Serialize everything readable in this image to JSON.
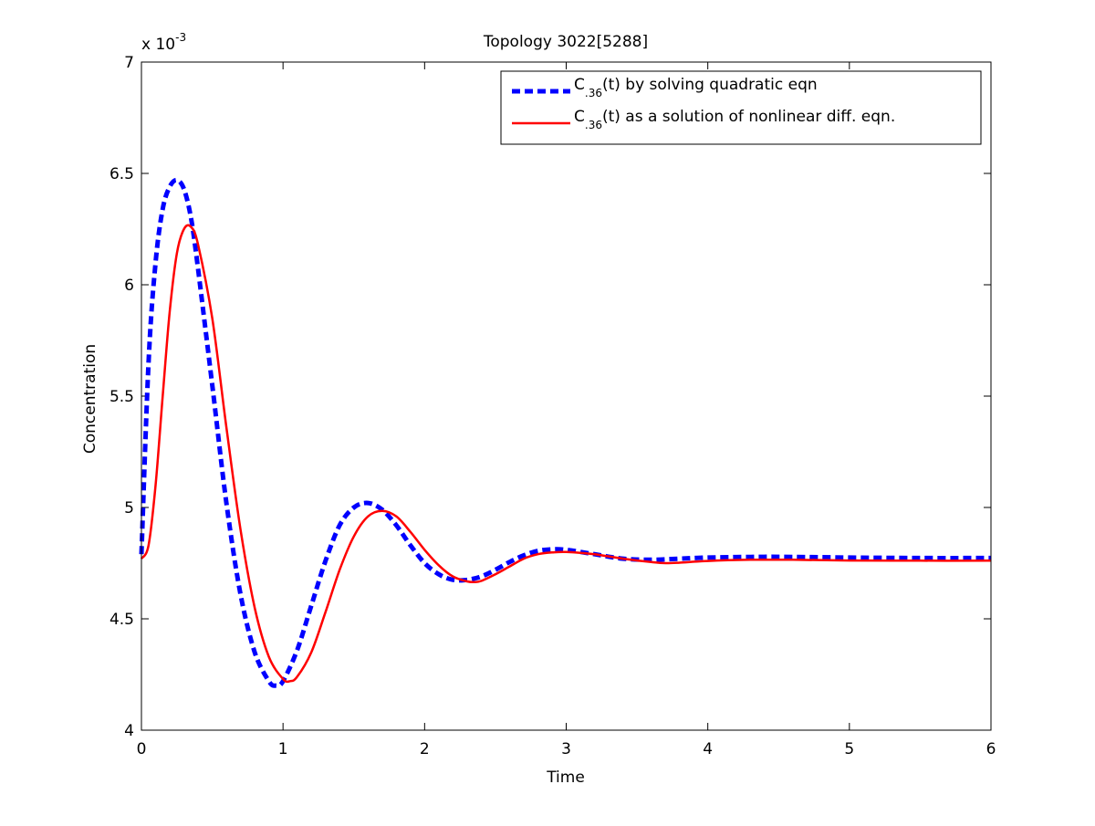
{
  "chart_data": {
    "type": "line",
    "title": "Topology 3022[5288]",
    "xlabel": "Time",
    "ylabel": "Concentration",
    "exponent_label": {
      "base": "x 10",
      "power": "-3"
    },
    "xlim": [
      0,
      6
    ],
    "ylim": [
      4,
      7
    ],
    "xticks": [
      0,
      1,
      2,
      3,
      4,
      5,
      6
    ],
    "xtick_labels": [
      "0",
      "1",
      "2",
      "3",
      "4",
      "5",
      "6"
    ],
    "yticks": [
      4,
      4.5,
      5,
      5.5,
      6,
      6.5,
      7
    ],
    "ytick_labels": [
      "4",
      "4.5",
      "5",
      "5.5",
      "6",
      "6.5",
      "7"
    ],
    "grid": false,
    "legend_position": "top-right",
    "legend_items": [
      {
        "main": "C",
        "sub": ".36",
        "rest": "(t) by solving quadratic eqn",
        "color": "#0000ff",
        "style": "dashed"
      },
      {
        "main": "C",
        "sub": ".36",
        "rest": "(t) as a solution of nonlinear diff. eqn.",
        "color": "#ff0000",
        "style": "solid"
      }
    ],
    "series": [
      {
        "color": "#0000ff",
        "style": "dashed",
        "x": [
          0,
          0.05,
          0.1,
          0.15,
          0.2,
          0.25,
          0.3,
          0.35,
          0.4,
          0.5,
          0.6,
          0.7,
          0.8,
          0.9,
          0.95,
          1.0,
          1.1,
          1.2,
          1.3,
          1.4,
          1.5,
          1.6,
          1.7,
          1.8,
          1.9,
          2.0,
          2.1,
          2.2,
          2.3,
          2.4,
          2.5,
          2.6,
          2.7,
          2.8,
          2.9,
          3.0,
          3.2,
          3.4,
          3.6,
          3.8,
          4.0,
          4.3,
          4.6,
          5.0,
          5.5,
          6.0
        ],
        "y": [
          4.79,
          5.65,
          6.1,
          6.34,
          6.44,
          6.47,
          6.43,
          6.3,
          6.07,
          5.55,
          5.02,
          4.61,
          4.35,
          4.22,
          4.2,
          4.22,
          4.36,
          4.56,
          4.76,
          4.92,
          5.0,
          5.02,
          4.99,
          4.92,
          4.83,
          4.75,
          4.7,
          4.675,
          4.675,
          4.69,
          4.72,
          4.755,
          4.785,
          4.805,
          4.812,
          4.81,
          4.79,
          4.77,
          4.765,
          4.77,
          4.775,
          4.778,
          4.778,
          4.775,
          4.773,
          4.773
        ]
      },
      {
        "color": "#ff0000",
        "style": "solid",
        "x": [
          0,
          0.05,
          0.1,
          0.15,
          0.2,
          0.25,
          0.3,
          0.35,
          0.4,
          0.5,
          0.6,
          0.7,
          0.8,
          0.9,
          1.0,
          1.05,
          1.1,
          1.2,
          1.3,
          1.4,
          1.5,
          1.6,
          1.7,
          1.8,
          1.9,
          2.0,
          2.1,
          2.2,
          2.3,
          2.35,
          2.4,
          2.5,
          2.6,
          2.7,
          2.8,
          2.9,
          3.0,
          3.2,
          3.4,
          3.6,
          3.7,
          3.8,
          4.0,
          4.3,
          4.6,
          5.0,
          5.5,
          6.0
        ],
        "y": [
          4.77,
          4.83,
          5.1,
          5.5,
          5.88,
          6.14,
          6.25,
          6.26,
          6.18,
          5.85,
          5.36,
          4.9,
          4.55,
          4.33,
          4.23,
          4.22,
          4.24,
          4.35,
          4.53,
          4.72,
          4.87,
          4.96,
          4.985,
          4.96,
          4.89,
          4.81,
          4.74,
          4.69,
          4.668,
          4.665,
          4.67,
          4.7,
          4.735,
          4.77,
          4.79,
          4.798,
          4.8,
          4.79,
          4.77,
          4.755,
          4.75,
          4.752,
          4.76,
          4.765,
          4.765,
          4.762,
          4.761,
          4.761
        ]
      }
    ]
  }
}
